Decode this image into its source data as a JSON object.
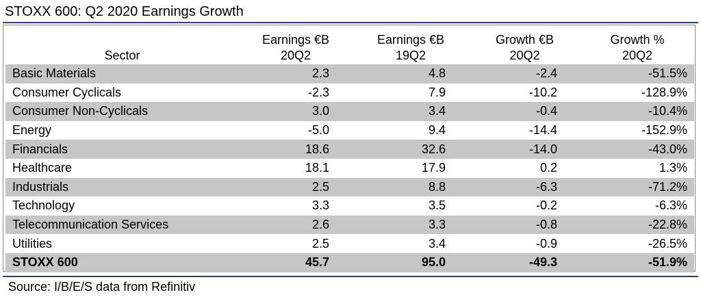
{
  "title": "STOXX 600: Q2 2020 Earnings Growth",
  "headers": {
    "sector": "Sector",
    "c1_line1": "Earnings €B",
    "c1_line2": "20Q2",
    "c2_line1": "Earnings €B",
    "c2_line2": "19Q2",
    "c3_line1": "Growth €B",
    "c3_line2": "20Q2",
    "c4_line1": "Growth %",
    "c4_line2": "20Q2"
  },
  "rows": [
    {
      "sector": "Basic Materials",
      "earn_20q2": "2.3",
      "earn_19q2": "4.8",
      "growth_eur": "-2.4",
      "growth_pct": "-51.5%"
    },
    {
      "sector": "Consumer Cyclicals",
      "earn_20q2": "-2.3",
      "earn_19q2": "7.9",
      "growth_eur": "-10.2",
      "growth_pct": "-128.9%"
    },
    {
      "sector": "Consumer Non-Cyclicals",
      "earn_20q2": "3.0",
      "earn_19q2": "3.4",
      "growth_eur": "-0.4",
      "growth_pct": "-10.4%"
    },
    {
      "sector": "Energy",
      "earn_20q2": "-5.0",
      "earn_19q2": "9.4",
      "growth_eur": "-14.4",
      "growth_pct": "-152.9%"
    },
    {
      "sector": "Financials",
      "earn_20q2": "18.6",
      "earn_19q2": "32.6",
      "growth_eur": "-14.0",
      "growth_pct": "-43.0%"
    },
    {
      "sector": "Healthcare",
      "earn_20q2": "18.1",
      "earn_19q2": "17.9",
      "growth_eur": "0.2",
      "growth_pct": "1.3%"
    },
    {
      "sector": "Industrials",
      "earn_20q2": "2.5",
      "earn_19q2": "8.8",
      "growth_eur": "-6.3",
      "growth_pct": "-71.2%"
    },
    {
      "sector": "Technology",
      "earn_20q2": "3.3",
      "earn_19q2": "3.5",
      "growth_eur": "-0.2",
      "growth_pct": "-6.3%"
    },
    {
      "sector": "Telecommunication Services",
      "earn_20q2": "2.6",
      "earn_19q2": "3.3",
      "growth_eur": "-0.8",
      "growth_pct": "-22.8%"
    },
    {
      "sector": "Utilities",
      "earn_20q2": "2.5",
      "earn_19q2": "3.4",
      "growth_eur": "-0.9",
      "growth_pct": "-26.5%"
    },
    {
      "sector": "STOXX 600",
      "earn_20q2": "45.7",
      "earn_19q2": "95.0",
      "growth_eur": "-49.3",
      "growth_pct": "-51.9%"
    }
  ],
  "source": "Source: I/B/E/S data from Refinitiv",
  "colors": {
    "rule": "#2b3a8f",
    "shaded_row": "#c6c6c6"
  }
}
